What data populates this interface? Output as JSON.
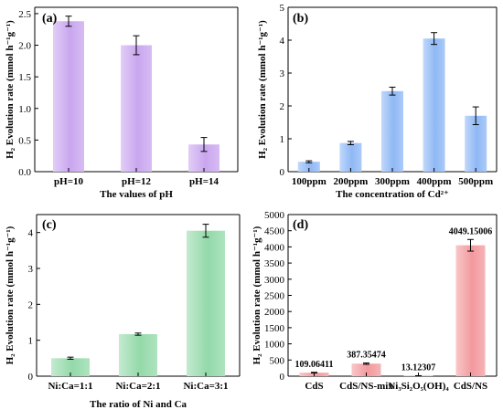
{
  "colors": {
    "purple": "#c9a6ef",
    "blue": "#8fb8f5",
    "green": "#93d9a9",
    "red": "#f3999d",
    "axis": "#000000"
  },
  "ylabel": "H₂ Evolution rate (mmol h⁻¹g⁻¹)",
  "chart_data": [
    {
      "panel": "(a)",
      "type": "bar",
      "color": "purple",
      "categories": [
        "pH=10",
        "pH=12",
        "pH=14"
      ],
      "values": [
        2.38,
        2.0,
        0.43
      ],
      "errors": [
        0.08,
        0.15,
        0.11
      ],
      "xlabel": "The values of pH",
      "ylabel": "H₂ Evolution rate (mmol h⁻¹g⁻¹)",
      "ylim": [
        0,
        2.6
      ],
      "yticks": [
        0,
        0.5,
        1.0,
        1.5,
        2.0,
        2.5
      ],
      "ytick_labels": [
        "0.0",
        "0.5",
        "1.0",
        "1.5",
        "2.0",
        "2.5"
      ],
      "grid": false
    },
    {
      "panel": "(b)",
      "type": "bar",
      "color": "blue",
      "categories": [
        "100ppm",
        "200ppm",
        "300ppm",
        "400ppm",
        "500ppm"
      ],
      "values": [
        0.3,
        0.87,
        2.45,
        4.05,
        1.7
      ],
      "errors": [
        0.03,
        0.05,
        0.12,
        0.18,
        0.27
      ],
      "xlabel": "The concentration of Cd²⁺",
      "ylabel": "H₂ Evolution rate (mmol h⁻¹g⁻¹)",
      "ylim": [
        0,
        5
      ],
      "yticks": [
        0,
        1,
        2,
        3,
        4,
        5
      ],
      "ytick_labels": [
        "0",
        "1",
        "2",
        "3",
        "4",
        "5"
      ],
      "grid": false
    },
    {
      "panel": "(c)",
      "type": "bar",
      "color": "green",
      "categories": [
        "Ni:Ca=1:1",
        "Ni:Ca=2:1",
        "Ni:Ca=3:1"
      ],
      "values": [
        0.5,
        1.17,
        4.05
      ],
      "errors": [
        0.03,
        0.03,
        0.18
      ],
      "xlabel": "The ratio of Ni and Ca",
      "ylabel": "H₂ Evolution rate (mmol h⁻¹g⁻¹)",
      "ylim": [
        0,
        4.5
      ],
      "yticks": [
        0,
        1,
        2,
        3,
        4
      ],
      "ytick_labels": [
        "0",
        "1",
        "2",
        "3",
        "4"
      ],
      "grid": false
    },
    {
      "panel": "(d)",
      "type": "bar",
      "color": "red",
      "categories": [
        "CdS",
        "CdS/NS-mix",
        "Ni₃Si₂O₅(OH)₄",
        "CdS/NS"
      ],
      "values": [
        109.06411,
        387.35474,
        13.12307,
        4049.15006
      ],
      "value_labels": [
        "109.06411",
        "387.35474",
        "13.12307",
        "4049.15006"
      ],
      "errors": [
        10,
        20,
        2,
        180
      ],
      "xlabel": "",
      "ylabel": "H₂ Evolution rate (mmol h⁻¹g⁻¹)",
      "ylim": [
        0,
        5000
      ],
      "yticks": [
        0,
        500,
        1000,
        1500,
        2000,
        2500,
        3000,
        3500,
        4000,
        4500,
        5000
      ],
      "ytick_labels": [
        "0",
        "500",
        "1000",
        "1500",
        "2000",
        "2500",
        "3000",
        "3500",
        "4000",
        "4500",
        "5000"
      ],
      "grid": false
    }
  ]
}
